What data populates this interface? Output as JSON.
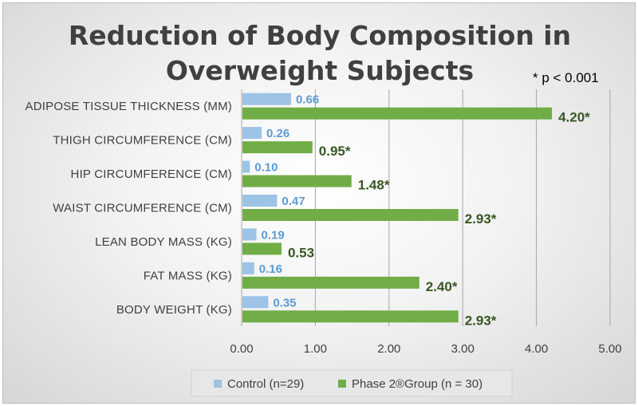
{
  "chart_data": {
    "type": "bar",
    "orientation": "horizontal",
    "title_lines": [
      "Reduction of Body Composition in",
      "Overweight Subjects"
    ],
    "annotation": "* p < 0.001",
    "categories": [
      "ADIPOSE TISSUE THICKNESS (MM)",
      "THIGH CIRCUMFERENCE (CM)",
      "HIP CIRCUMFERENCE (CM)",
      "WAIST CIRCUMFERENCE (CM)",
      "LEAN BODY MASS (KG)",
      "FAT MASS (KG)",
      "BODY WEIGHT (KG)"
    ],
    "series": [
      {
        "name": "Control (n=29)",
        "color": "#9dc3e6",
        "values": [
          0.66,
          0.26,
          0.1,
          0.47,
          0.19,
          0.16,
          0.35
        ],
        "labels": [
          "0.66",
          "0.26",
          "0.10",
          "0.47",
          "0.19",
          "0.16",
          "0.35"
        ]
      },
      {
        "name": "Phase 2®Group (n = 30)",
        "color": "#70ad47",
        "values": [
          4.2,
          0.95,
          1.48,
          2.93,
          0.53,
          2.4,
          2.93
        ],
        "labels": [
          "4.20*",
          "0.95*",
          "1.48*",
          "2.93*",
          "0.53",
          "2.40*",
          "2.93*"
        ]
      }
    ],
    "xlim": [
      0,
      5
    ],
    "xticks": [
      0,
      1,
      2,
      3,
      4,
      5
    ],
    "xtick_labels": [
      "0.00",
      "1.00",
      "2.00",
      "3.00",
      "4.00",
      "5.00"
    ],
    "grid": "vertical",
    "legend_position": "bottom"
  }
}
